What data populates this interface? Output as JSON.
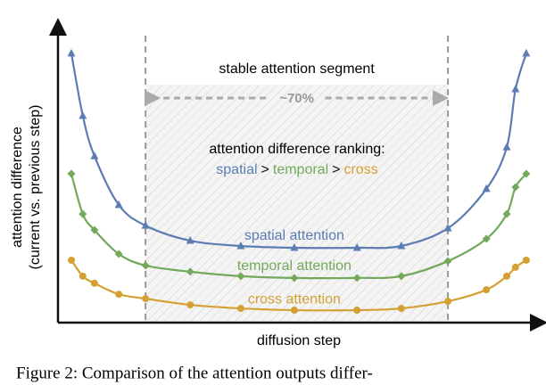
{
  "chart_data": {
    "type": "line",
    "x_label": "diffusion step",
    "y_label": [
      "attention difference",
      "(current vs. previous step)"
    ],
    "xlim": [
      0,
      100
    ],
    "ylim": [
      0,
      100
    ],
    "x": [
      2.75,
      5.1,
      7.5,
      12.5,
      18,
      27.2,
      37.6,
      48.6,
      61.5,
      70.6,
      80.2,
      88.1,
      92.3,
      94.1,
      96.3
    ],
    "series": [
      {
        "name": "spatial attention",
        "color": "#5b7db1",
        "marker": "triangle",
        "values": [
          91,
          69.9,
          56.3,
          39.8,
          32.8,
          27.7,
          25.9,
          25.3,
          25.3,
          25.9,
          31.9,
          45.2,
          59.3,
          78.9,
          91
        ]
      },
      {
        "name": "temporal attention",
        "color": "#72a95a",
        "marker": "diamond",
        "values": [
          50.3,
          36.7,
          31.3,
          23.2,
          19.3,
          17.2,
          15.7,
          15.1,
          15.1,
          15.7,
          20.8,
          28.3,
          36.7,
          45.8,
          50.3
        ]
      },
      {
        "name": "cross attention",
        "color": "#d4a032",
        "marker": "circle",
        "values": [
          21.1,
          15.7,
          13.3,
          9.6,
          8.1,
          6.0,
          4.8,
          4.2,
          4.2,
          4.8,
          7.2,
          11.1,
          15.7,
          18.7,
          21.1
        ]
      }
    ],
    "segment": {
      "label": "stable attention segment",
      "span_label": "~70%",
      "x": [
        18,
        80.2
      ]
    },
    "ranking": {
      "title": "attention difference ranking:",
      "items": [
        "spatial",
        ">",
        "temporal",
        ">",
        "cross"
      ]
    },
    "caption": "Figure 2: Comparison of the attention outputs differ-"
  }
}
